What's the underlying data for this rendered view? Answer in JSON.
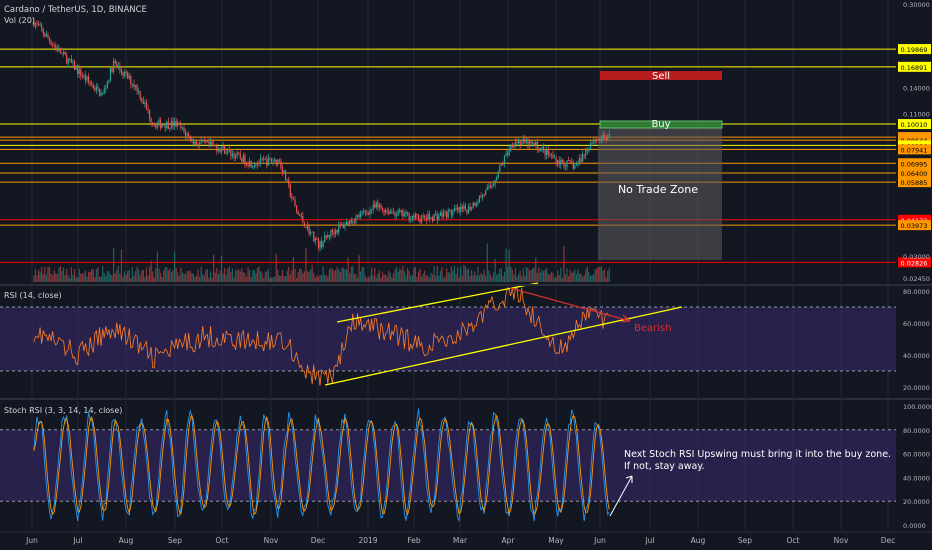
{
  "header": {
    "symbol": "Cardano / TetherUS, 1D, BINANCE",
    "volume_label": "Vol (20)"
  },
  "chart_data": [
    {
      "type": "candlestick",
      "title": "Cardano / TetherUS, 1D, BINANCE",
      "scale": "log",
      "ylim": [
        0.0245,
        0.3
      ],
      "x_months": [
        "Jun",
        "Jul",
        "Aug",
        "Sep",
        "Oct",
        "Nov",
        "Dec",
        "2019",
        "Feb",
        "Mar",
        "Apr",
        "May",
        "Jun",
        "Jul",
        "Aug",
        "Sep",
        "Oct",
        "Nov",
        "Dec"
      ],
      "price_path": [
        [
          2018.42,
          0.255
        ],
        [
          2018.46,
          0.2
        ],
        [
          2018.5,
          0.16
        ],
        [
          2018.54,
          0.13
        ],
        [
          2018.56,
          0.175
        ],
        [
          2018.6,
          0.14
        ],
        [
          2018.63,
          0.1
        ],
        [
          2018.67,
          0.1
        ],
        [
          2018.7,
          0.085
        ],
        [
          2018.75,
          0.08
        ],
        [
          2018.8,
          0.07
        ],
        [
          2018.85,
          0.072
        ],
        [
          2018.88,
          0.045
        ],
        [
          2018.92,
          0.033
        ],
        [
          2018.94,
          0.037
        ],
        [
          2018.98,
          0.042
        ],
        [
          2019.02,
          0.047
        ],
        [
          2019.06,
          0.044
        ],
        [
          2019.1,
          0.042
        ],
        [
          2019.14,
          0.044
        ],
        [
          2019.18,
          0.046
        ],
        [
          2019.22,
          0.056
        ],
        [
          2019.26,
          0.086
        ],
        [
          2019.3,
          0.082
        ],
        [
          2019.34,
          0.071
        ],
        [
          2019.37,
          0.068
        ],
        [
          2019.4,
          0.087
        ],
        [
          2019.43,
          0.088
        ]
      ],
      "y_ticks": [
        {
          "label": "0.30000",
          "value": 0.3
        },
        {
          "label": "0.14000",
          "value": 0.14
        },
        {
          "label": "0.11000",
          "value": 0.11
        },
        {
          "label": "0.03000",
          "value": 0.03
        },
        {
          "label": "0.02450",
          "value": 0.0245
        }
      ],
      "levels": [
        {
          "label": "0.19869",
          "value": 0.19869,
          "color": "#ffff00"
        },
        {
          "label": "0.16891",
          "value": 0.16891,
          "color": "#ffff00"
        },
        {
          "label": "0.10010",
          "value": 0.1001,
          "color": "#ffff00"
        },
        {
          "label": "0.08885",
          "value": 0.08885,
          "color": "#ff9800"
        },
        {
          "label": "0.08644",
          "value": 0.08644,
          "color": "#ff9800"
        },
        {
          "label": "0.08236",
          "value": 0.08236,
          "color": "#ffff00"
        },
        {
          "label": "0.07941",
          "value": 0.07941,
          "color": "#ff9800"
        },
        {
          "label": "0.06995",
          "value": 0.06995,
          "color": "#ff9800"
        },
        {
          "label": "0.06400",
          "value": 0.064,
          "color": "#ff9800"
        },
        {
          "label": "0.05885",
          "value": 0.05885,
          "color": "#ff9800"
        },
        {
          "label": "0.04172",
          "value": 0.04172,
          "color": "#ff0000"
        },
        {
          "label": "0.03973",
          "value": 0.03973,
          "color": "#ff9800"
        },
        {
          "label": "0.02826",
          "value": 0.02826,
          "color": "#ff0000"
        }
      ],
      "annotations": {
        "sell": "Sell",
        "buy": "Buy",
        "no_trade": "No Trade Zone"
      }
    },
    {
      "type": "line",
      "title": "RSI (14, close)",
      "ylim": [
        20,
        80
      ],
      "bands": [
        30,
        70
      ],
      "y_ticks": [
        {
          "label": "80.0000",
          "value": 80
        },
        {
          "label": "60.0000",
          "value": 60
        },
        {
          "label": "40.0000",
          "value": 40
        },
        {
          "label": "20.0000",
          "value": 20
        }
      ],
      "annotations": {
        "bearish": "Bearish"
      }
    },
    {
      "type": "line",
      "title": "Stoch RSI (3, 3, 14, 14, close)",
      "ylim": [
        0,
        100
      ],
      "bands": [
        20,
        80
      ],
      "y_ticks": [
        {
          "label": "100.0000",
          "value": 100
        },
        {
          "label": "80.0000",
          "value": 80
        },
        {
          "label": "60.0000",
          "value": 60
        },
        {
          "label": "40.0000",
          "value": 40
        },
        {
          "label": "20.0000",
          "value": 20
        },
        {
          "label": "0.0000",
          "value": 0
        }
      ],
      "annotations": {
        "note_line1": "Next Stoch RSI Upswing must bring it into the buy zone.",
        "note_line2": "If not, stay away."
      }
    }
  ],
  "colors": {
    "background": "#131722",
    "grid": "#232836",
    "candle_up": "#26a69a",
    "candle_down": "#ef5350",
    "rsi_line": "#ff7f27",
    "band_fill": "#3b2a6e",
    "stoch_k": "#2196f3",
    "stoch_d": "#ff9800",
    "trendline": "#ffff00"
  }
}
